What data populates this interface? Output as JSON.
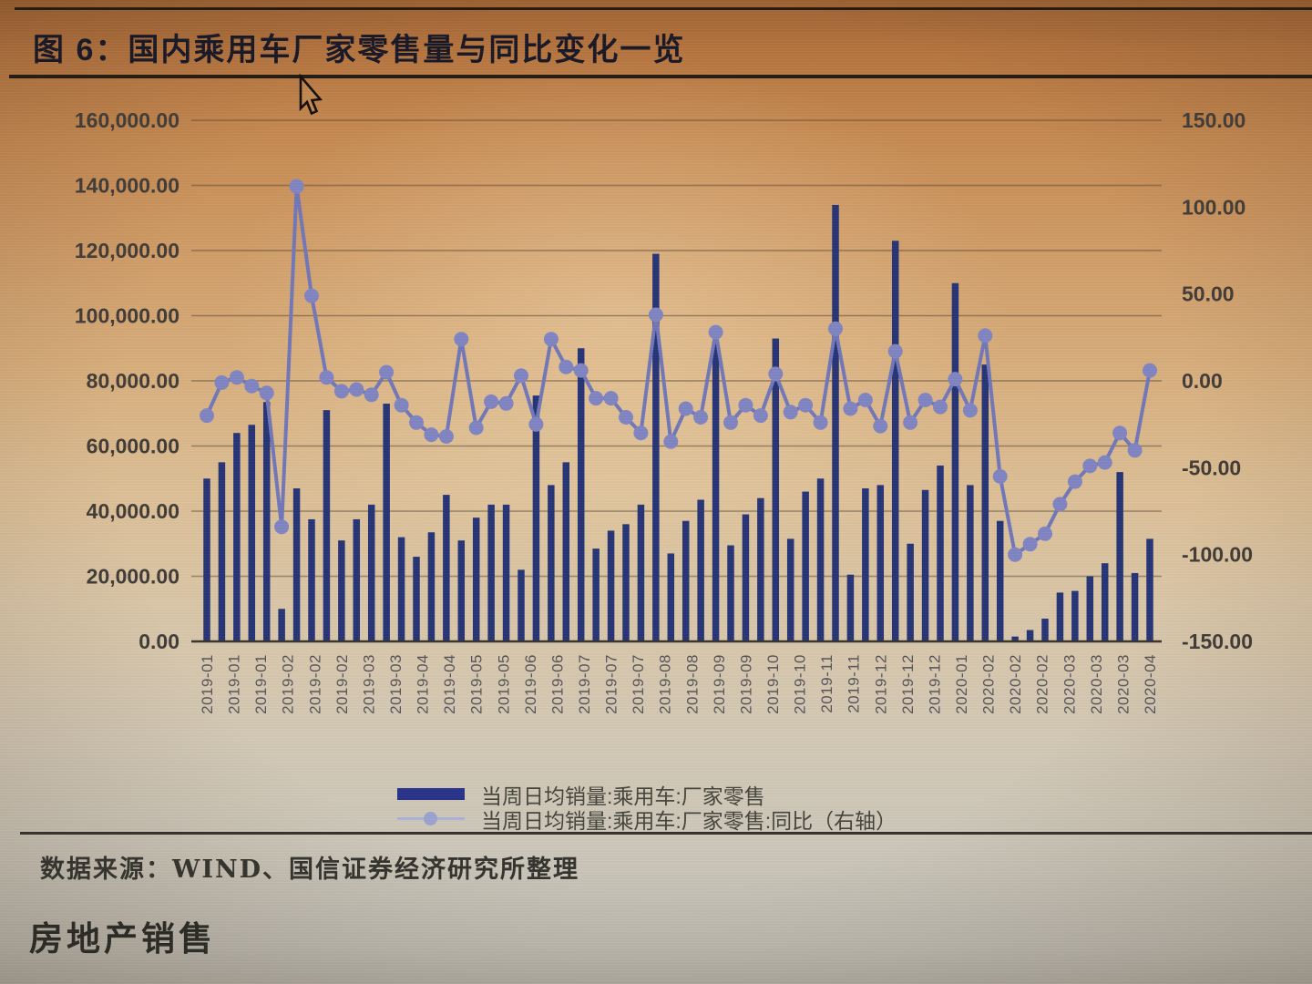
{
  "title": "图 6：国内乘用车厂家零售量与同比变化一览",
  "y_axis_left": {
    "labels": [
      "160,000.00",
      "140,000.00",
      "120,000.00",
      "100,000.00",
      "80,000.00",
      "60,000.00",
      "40,000.00",
      "20,000.00",
      "0.00"
    ]
  },
  "y_axis_right": {
    "labels": [
      "150.00",
      "100.00",
      "50.00",
      "0.00",
      "-50.00",
      "-100.00",
      "-150.00"
    ]
  },
  "x_axis": {
    "labels": [
      "2019-01",
      "2019-01",
      "2019-01",
      "2019-02",
      "2019-02",
      "2019-02",
      "2019-03",
      "2019-03",
      "2019-04",
      "2019-04",
      "2019-05",
      "2019-05",
      "2019-06",
      "2019-06",
      "2019-07",
      "2019-07",
      "2019-07",
      "2019-08",
      "2019-08",
      "2019-09",
      "2019-09",
      "2019-10",
      "2019-10",
      "2019-11",
      "2019-11",
      "2019-12",
      "2019-12",
      "2019-12",
      "2020-01",
      "2020-02",
      "2020-02",
      "2020-02",
      "2020-03",
      "2020-03",
      "2020-03",
      "2020-04"
    ]
  },
  "legend": [
    {
      "label": "当周日均销量:乘用车:厂家零售"
    },
    {
      "label": "当周日均销量:乘用车:厂家零售:同比（右轴）"
    }
  ],
  "source": "数据来源：WIND、国信证券经济研究所整理",
  "footer": "房地产销售",
  "colors": {
    "bar": "#273577",
    "line": "#7277b8",
    "marker": "#8085c2"
  },
  "chart_data": {
    "type": "bar",
    "subtype": "bar+line combo, weekly data",
    "title": "国内乘用车厂家零售量与同比变化一览",
    "months": [
      "2019-01",
      "2019-02",
      "2019-03",
      "2019-04",
      "2019-05",
      "2019-06",
      "2019-07",
      "2019-08",
      "2019-09",
      "2019-10",
      "2019-11",
      "2019-12",
      "2020-01",
      "2020-02",
      "2020-03",
      "2020-04"
    ],
    "points_per_month": 4,
    "left_ylim": [
      0,
      160000
    ],
    "right_ylim": [
      -150,
      150
    ],
    "grid": true,
    "legend_position": "bottom",
    "series": [
      {
        "name": "当周日均销量:乘用车:厂家零售",
        "type": "bar",
        "axis": "left",
        "values": [
          50000,
          55000,
          64000,
          66500,
          73500,
          10000,
          47000,
          37500,
          71000,
          31000,
          37500,
          42000,
          73000,
          32000,
          26000,
          33500,
          45000,
          31000,
          38000,
          42000,
          42000,
          22000,
          75500,
          48000,
          55000,
          90000,
          28500,
          34000,
          36000,
          42000,
          119000,
          27000,
          37000,
          43500,
          92000,
          29500,
          39000,
          44000,
          93000,
          31500,
          46000,
          50000,
          134000,
          20500,
          47000,
          48000,
          123000,
          30000,
          46500,
          54000,
          110000,
          48000,
          85000,
          37000,
          1500,
          3500,
          7000,
          15000,
          15500,
          20000,
          24000,
          52000,
          21000,
          31500
        ]
      },
      {
        "name": "当周日均销量:乘用车:厂家零售:同比（右轴）",
        "type": "line",
        "axis": "right",
        "values": [
          -20,
          -1,
          2,
          -3,
          -7,
          -84,
          112,
          49,
          2,
          -6,
          -5,
          -8,
          5,
          -14,
          -24,
          -31,
          -32,
          24,
          -27,
          -12,
          -13,
          3,
          -25,
          24,
          8,
          6,
          -10,
          -10,
          -21,
          -30,
          38,
          -35,
          -16,
          -21,
          28,
          -24,
          -14,
          -20,
          4,
          -18,
          -14,
          -24,
          30,
          -16,
          -11,
          -26,
          17,
          -24,
          -11,
          -15,
          1,
          -17,
          26,
          -55,
          -100,
          -94,
          -88,
          -71,
          -58,
          -49,
          -47,
          -30,
          -40,
          6
        ]
      }
    ]
  }
}
